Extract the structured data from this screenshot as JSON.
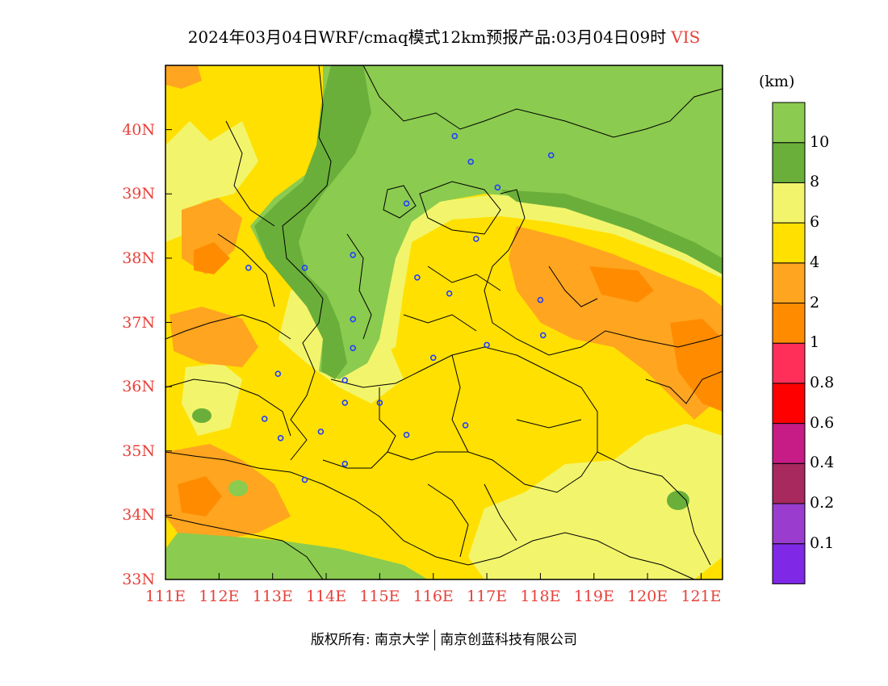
{
  "title": {
    "text": "2024年03月04日WRF/cmaq模式12km预报产品:03月04日09时",
    "variable": "VIS"
  },
  "map": {
    "extent": {
      "lon": [
        111,
        121.4
      ],
      "lat": [
        33,
        41
      ]
    },
    "lat_ticks": [
      "33N",
      "34N",
      "35N",
      "36N",
      "37N",
      "38N",
      "39N",
      "40N"
    ],
    "lon_ticks": [
      "111E",
      "112E",
      "113E",
      "114E",
      "115E",
      "116E",
      "117E",
      "118E",
      "119E",
      "120E",
      "121E"
    ],
    "city_markers": [
      [
        116.4,
        39.9
      ],
      [
        117.2,
        39.1
      ],
      [
        116.7,
        39.5
      ],
      [
        118.2,
        39.6
      ],
      [
        115.5,
        38.85
      ],
      [
        116.8,
        38.3
      ],
      [
        114.5,
        38.05
      ],
      [
        113.6,
        37.85
      ],
      [
        112.55,
        37.85
      ],
      [
        115.7,
        37.7
      ],
      [
        116.3,
        37.45
      ],
      [
        118.0,
        37.35
      ],
      [
        114.5,
        37.05
      ],
      [
        118.05,
        36.8
      ],
      [
        117.0,
        36.65
      ],
      [
        114.5,
        36.6
      ],
      [
        116.0,
        36.45
      ],
      [
        113.1,
        36.2
      ],
      [
        114.35,
        36.1
      ],
      [
        112.85,
        35.5
      ],
      [
        115.0,
        35.75
      ],
      [
        114.35,
        35.75
      ],
      [
        113.9,
        35.3
      ],
      [
        113.15,
        35.2
      ],
      [
        115.5,
        35.25
      ],
      [
        116.6,
        35.4
      ],
      [
        114.35,
        34.8
      ],
      [
        113.6,
        34.55
      ]
    ],
    "colors": {
      "lt01": "#7f28e6",
      "r01_02": "#9a3dcf",
      "r02_04": "#a8295d",
      "r04_06": "#c71b85",
      "r06_08": "#ff0000",
      "r08_1": "#ff2f5a",
      "r1_2": "#ff8c00",
      "r2_4": "#ffa520",
      "r4_6": "#ffe000",
      "r6_8": "#f2f56b",
      "r8_10": "#6aaf3a",
      "gt10": "#8bcb4f"
    }
  },
  "colorbar": {
    "unit": "(km)",
    "colors": [
      "#7f28e6",
      "#9a3dcf",
      "#a8295d",
      "#c71b85",
      "#ff0000",
      "#ff2f5a",
      "#ff8c00",
      "#ffa520",
      "#ffe000",
      "#f2f56b",
      "#6aaf3a",
      "#8bcb4f"
    ],
    "labels": [
      "0.1",
      "0.2",
      "0.4",
      "0.6",
      "0.8",
      "1",
      "2",
      "4",
      "6",
      "8",
      "10"
    ]
  },
  "footer": {
    "left": "版权所有: 南京大学",
    "right": "南京创蓝科技有限公司"
  }
}
